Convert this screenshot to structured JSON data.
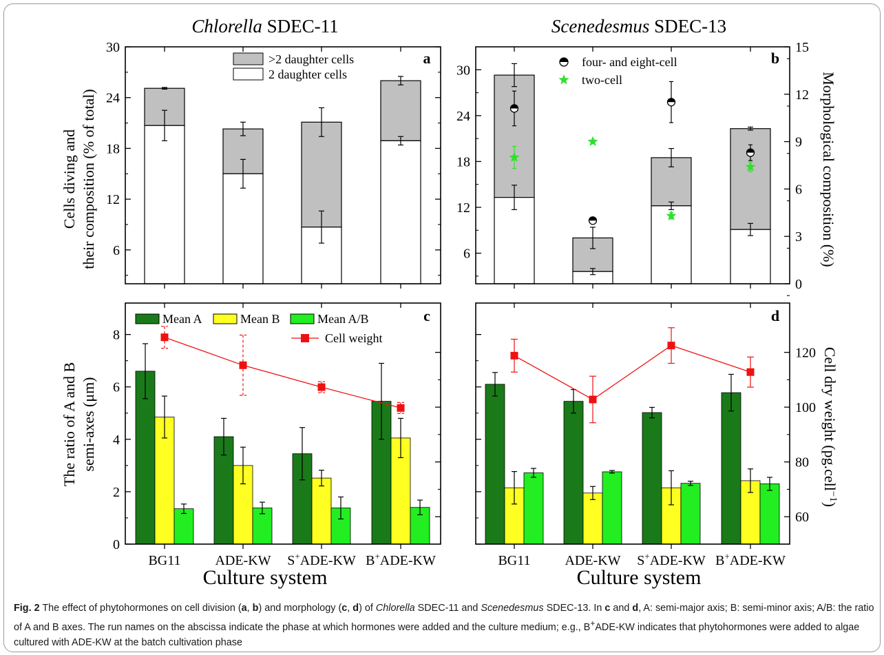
{
  "chart_data": [
    {
      "panel": "a",
      "type": "bar",
      "stacked": true,
      "title": "Chlorella SDEC-11",
      "ylabel_lines": [
        "Cells diving and",
        "their composition (% of total)"
      ],
      "categories": [
        "BG11",
        "ADE-KW",
        "S+ADE-KW",
        "B+ADE-KW"
      ],
      "ylim": [
        2,
        30
      ],
      "yticks": [
        6,
        12,
        18,
        24,
        30
      ],
      "legend": ">2 daughter cells / 2 daughter cells (top)",
      "series": [
        {
          "name": "2 daughter cells",
          "color": "#ffffff",
          "values": [
            20.7,
            15.0,
            8.7,
            18.9
          ],
          "errors": [
            1.8,
            1.7,
            1.9,
            0.5
          ]
        },
        {
          "name": ">2 daughter cells",
          "color": "#c0c0c0",
          "totals": [
            25.1,
            20.3,
            21.1,
            26.0
          ],
          "total_errors": [
            0.1,
            0.8,
            1.7,
            0.5
          ]
        }
      ]
    },
    {
      "panel": "b",
      "type": "bar",
      "stacked": true,
      "title": "Scenedesmus SDEC-13",
      "ylabel_right": "Morphological composition (%)",
      "categories": [
        "BG11",
        "ADE-KW",
        "S+ADE-KW",
        "B+ADE-KW"
      ],
      "ylim_left": [
        2,
        33
      ],
      "yticks_left": [
        6,
        12,
        18,
        24,
        30
      ],
      "ylim_right": [
        0,
        15
      ],
      "yticks_right": [
        0,
        3,
        6,
        9,
        12,
        15
      ],
      "series": [
        {
          "name": "2 daughter cells",
          "axis": "left",
          "color": "#ffffff",
          "values": [
            13.3,
            3.6,
            12.2,
            9.1
          ],
          "errors": [
            1.6,
            0.4,
            0.5,
            0.8
          ]
        },
        {
          "name": ">2 daughter cells",
          "axis": "left",
          "color": "#c0c0c0",
          "totals": [
            29.3,
            8.0,
            18.5,
            22.3
          ],
          "total_errors": [
            1.5,
            1.4,
            1.2,
            0.2
          ]
        },
        {
          "name": "four- and eight-cell",
          "axis": "right",
          "marker": "half-circle",
          "values": [
            11.1,
            4.0,
            11.5,
            8.3
          ],
          "errors": [
            1.1,
            0.2,
            1.3,
            0.5
          ]
        },
        {
          "name": "two-cell",
          "axis": "right",
          "marker": "star",
          "color": "#2fe02f",
          "values": [
            8.0,
            9.0,
            4.3,
            7.4
          ],
          "errors": [
            0.7,
            0.1,
            0.2,
            0.3
          ]
        }
      ]
    },
    {
      "panel": "c",
      "type": "bar",
      "ylabel_lines": [
        "The ratio of A and B",
        "semi-axes (μm)"
      ],
      "xlabel": "Culture system",
      "categories": [
        "BG11",
        "ADE-KW",
        "S+ADE-KW",
        "B+ADE-KW"
      ],
      "ylim": [
        0,
        9.2
      ],
      "yticks": [
        0,
        2,
        4,
        6,
        8
      ],
      "series": [
        {
          "name": "Mean A",
          "color": "#1a7a1a",
          "values": [
            6.6,
            4.1,
            3.45,
            5.45
          ],
          "errors": [
            1.05,
            0.7,
            1.0,
            1.45
          ]
        },
        {
          "name": "Mean B",
          "color": "#ffff22",
          "values": [
            4.85,
            3.0,
            2.52,
            4.05
          ],
          "errors": [
            0.8,
            0.7,
            0.3,
            0.75
          ]
        },
        {
          "name": "Mean A/B",
          "color": "#22ee22",
          "values": [
            1.35,
            1.38,
            1.38,
            1.4
          ],
          "errors": [
            0.18,
            0.22,
            0.42,
            0.28
          ]
        },
        {
          "name": "Cell weight",
          "type": "line",
          "color": "#ee1111",
          "axis": "right",
          "values": [
            125.5,
            115.3,
            107.3,
            99.7
          ],
          "errors": [
            4.0,
            11.0,
            2.0,
            2.0
          ]
        }
      ]
    },
    {
      "panel": "d",
      "type": "bar",
      "ylabel_right": "Cell dry weight (pg.cell−1)",
      "xlabel": "Culture system",
      "categories": [
        "BG11",
        "ADE-KW",
        "S+ADE-KW",
        "B+ADE-KW"
      ],
      "ylim_left": [
        0,
        9.2
      ],
      "ylim_right": [
        50,
        138
      ],
      "yticks_right": [
        60,
        80,
        100,
        120
      ],
      "series": [
        {
          "name": "Mean A",
          "color": "#1a7a1a",
          "values": [
            6.1,
            5.45,
            5.02,
            5.78
          ],
          "errors": [
            0.45,
            0.45,
            0.2,
            0.7
          ]
        },
        {
          "name": "Mean B",
          "color": "#ffff22",
          "values": [
            2.15,
            1.95,
            2.15,
            2.42
          ],
          "errors": [
            0.62,
            0.25,
            0.65,
            0.45
          ]
        },
        {
          "name": "Mean A/B",
          "color": "#22ee22",
          "values": [
            2.72,
            2.76,
            2.32,
            2.3
          ],
          "errors": [
            0.17,
            0.05,
            0.08,
            0.25
          ]
        },
        {
          "name": "Cell weight",
          "type": "line",
          "color": "#ee1111",
          "axis": "right",
          "values": [
            118.8,
            102.8,
            122.5,
            112.8
          ],
          "errors": [
            6.0,
            8.5,
            6.5,
            5.5
          ]
        }
      ]
    }
  ],
  "labels": {
    "title_a_genus": "Chlorella",
    "title_a_rest": " SDEC-11",
    "title_b_genus": "Scenedesmus",
    "title_b_rest": " SDEC-13",
    "ylabel_ab_line1": "Cells diving and",
    "ylabel_ab_line2": "their composition (% of total)",
    "ylabel_cd_line1": "The ratio of A and B",
    "ylabel_cd_line2": "semi-axes (μm)",
    "yright_b": "Morphological composition (%)",
    "yright_d_main": "Cell dry weight (pg.cell",
    "yright_d_sup": "−1",
    "yright_d_end": ")",
    "xlabel": "Culture system",
    "panel_a": "a",
    "panel_b": "b",
    "panel_c": "c",
    "panel_d": "d",
    "legend_a1": ">2 daughter cells",
    "legend_a2": "2 daughter cells",
    "legend_b1": "four- and eight-cell",
    "legend_b2": "two-cell",
    "legend_c1": "Mean A",
    "legend_c2": "Mean B",
    "legend_c3": "Mean A/B",
    "legend_c4": "Cell weight",
    "cat": [
      {
        "pre": "",
        "sup": "",
        "main": "BG11"
      },
      {
        "pre": "",
        "sup": "",
        "main": "ADE-KW"
      },
      {
        "pre": "S",
        "sup": "+",
        "main": "ADE-KW"
      },
      {
        "pre": "B",
        "sup": "+",
        "main": "ADE-KW"
      }
    ]
  },
  "caption": {
    "fig": "Fig. 2",
    "t1": " The effect of phytohormones on cell division (",
    "a": "a",
    "comma1": ", ",
    "b": "b",
    "t2": ") and morphology (",
    "c": "c",
    "comma2": ", ",
    "d": "d",
    "t3": ") of ",
    "chl": "Chlorella",
    "t4": " SDEC-11 and ",
    "sce": "Scenedesmus",
    "t5": " SDEC-13. In ",
    "c2": "c",
    "and": " and ",
    "d2": "d",
    "t6": ", A: semi-major axis; B: semi-minor axis; A/B: the ratio of A and B axes. The run names on the abscissa indicate the phase at which hormones were added and the culture medium; e.g., B",
    "sup": "+",
    "t7": "ADE-KW indicates that phytohormones were added to algae cultured with ADE-KW at the batch cultivation phase"
  },
  "colors": {
    "gray_bar": "#c0c0c0",
    "mean_a": "#1a7a1a",
    "mean_b": "#ffff22",
    "mean_ab": "#22ee22",
    "cell_weight": "#ee1111",
    "two_cell_star": "#2fe02f"
  }
}
